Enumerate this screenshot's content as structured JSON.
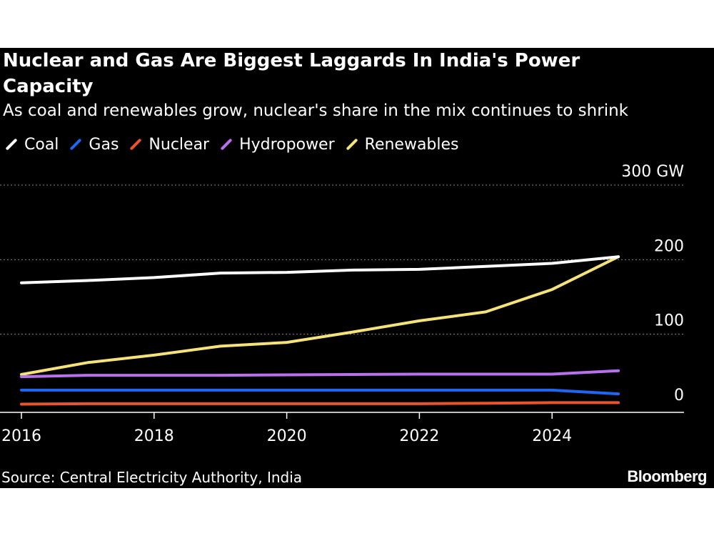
{
  "chart_data": {
    "type": "line",
    "title": "Nuclear and Gas Are Biggest Laggards In India's Power Capacity",
    "subtitle": "As coal and renewables grow, nuclear's share in the mix continues to shrink",
    "x": [
      2016,
      2017,
      2018,
      2019,
      2020,
      2021,
      2022,
      2023,
      2024,
      2025
    ],
    "x_ticks": [
      "2016",
      "2018",
      "2020",
      "2022",
      "2024"
    ],
    "y_ticks": [
      "300 GW",
      "200",
      "100",
      "0"
    ],
    "ylim": [
      0,
      300
    ],
    "xlabel": "",
    "ylabel": "GW",
    "series": [
      {
        "name": "Coal",
        "color": "#ffffff",
        "values": [
          169,
          172,
          176,
          182,
          183,
          186,
          187,
          191,
          195,
          204
        ]
      },
      {
        "name": "Gas",
        "color": "#1f66f2",
        "values": [
          25,
          25,
          25,
          25,
          25,
          25,
          25,
          25,
          25,
          20
        ]
      },
      {
        "name": "Nuclear",
        "color": "#e8542c",
        "values": [
          6.2,
          6.8,
          6.8,
          6.8,
          6.8,
          6.8,
          6.8,
          7.5,
          8.2,
          8.2
        ]
      },
      {
        "name": "Hydropower",
        "color": "#b970ec",
        "values": [
          43,
          45,
          45,
          45,
          45.5,
          46,
          46.5,
          46.5,
          46.5,
          51
        ]
      },
      {
        "name": "Renewables",
        "color": "#f6e27a",
        "values": [
          46,
          62,
          72,
          84,
          89,
          103,
          118,
          130,
          160,
          204
        ]
      }
    ]
  },
  "source": "Source: Central Electricity Authority, India",
  "brand": "Bloomberg"
}
